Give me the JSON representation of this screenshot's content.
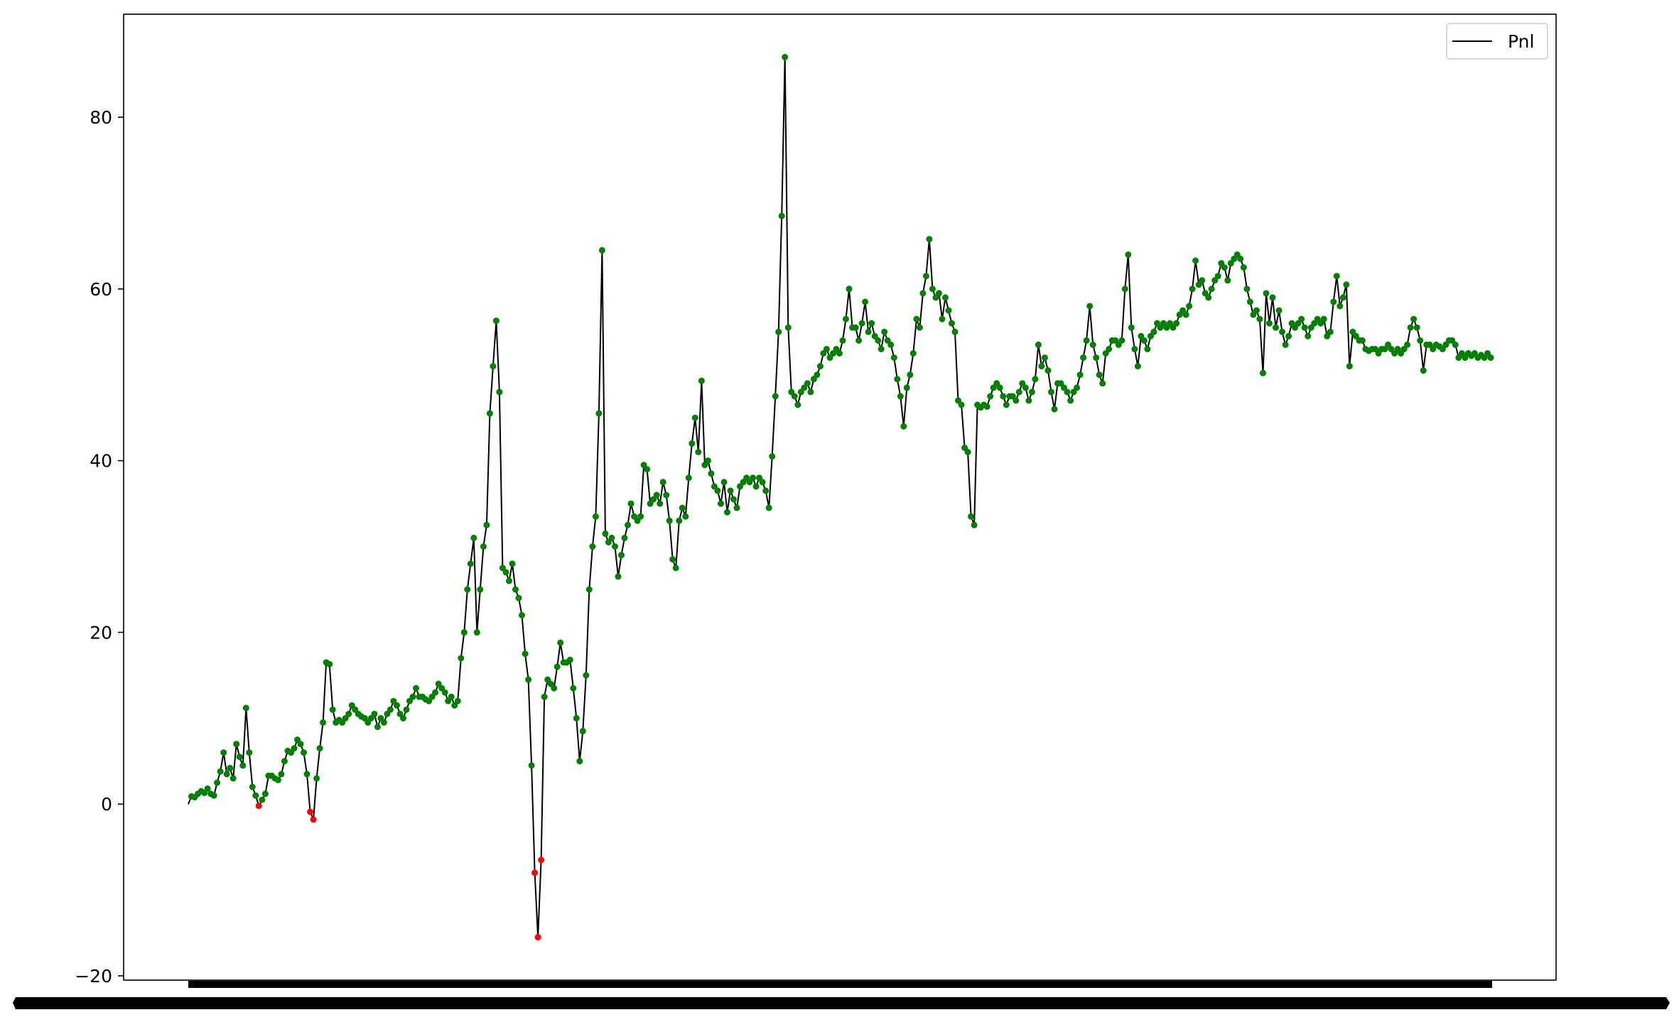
{
  "chart_data": {
    "type": "line",
    "title": "",
    "xlabel": "",
    "ylabel": "",
    "ylim": [
      -20.5,
      92
    ],
    "grid": false,
    "legend": {
      "placement": "top-right",
      "entries": [
        "Pnl"
      ]
    },
    "y_ticks": [
      "−20",
      "0",
      "20",
      "40",
      "60",
      "80"
    ],
    "y_tick_values": [
      -20,
      0,
      20,
      40,
      60,
      80
    ],
    "colors": {
      "line": "#000000",
      "positive_marker": "#008000",
      "negative_marker": "#ff0000"
    },
    "series": [
      {
        "name": "Pnl",
        "values": [
          0,
          0.9,
          0.8,
          1.2,
          1.5,
          1.3,
          1.8,
          1.2,
          1.0,
          2.5,
          3.8,
          6.0,
          3.5,
          4.2,
          3.0,
          7.0,
          5.5,
          4.5,
          11.2,
          6.0,
          2.0,
          1.0,
          -0.2,
          0.5,
          1.2,
          3.3,
          3.3,
          3.0,
          2.8,
          3.5,
          5.0,
          6.2,
          6.0,
          6.5,
          7.5,
          7.0,
          6.0,
          3.5,
          -0.9,
          -1.8,
          3.0,
          6.5,
          9.5,
          16.5,
          16.3,
          11.0,
          9.5,
          9.8,
          9.5,
          10.0,
          10.5,
          11.5,
          11.0,
          10.5,
          10.2,
          10.0,
          9.5,
          10.0,
          10.5,
          9.0,
          10.0,
          9.5,
          10.5,
          11.0,
          12.0,
          11.5,
          10.5,
          10.0,
          11.0,
          12.0,
          12.5,
          13.5,
          12.5,
          12.5,
          12.2,
          12.0,
          12.5,
          13.0,
          14.0,
          13.5,
          13.0,
          12.0,
          12.5,
          11.5,
          12.0,
          17.0,
          20.0,
          25.0,
          28.0,
          31.0,
          20.0,
          25.0,
          30.0,
          32.5,
          45.5,
          51.0,
          56.3,
          48.0,
          27.5,
          27.0,
          26.0,
          28.0,
          25.0,
          24.0,
          22.0,
          17.5,
          14.5,
          4.5,
          -8.0,
          -15.5,
          -6.5,
          12.5,
          14.5,
          14.0,
          13.5,
          16.0,
          18.8,
          16.5,
          16.5,
          16.8,
          13.5,
          10.0,
          5.0,
          8.5,
          15.0,
          25.0,
          30.0,
          33.5,
          45.5,
          64.5,
          31.5,
          30.5,
          31.0,
          30.0,
          26.5,
          29.0,
          31.0,
          32.5,
          35.0,
          33.5,
          33.0,
          33.5,
          39.5,
          39.0,
          35.0,
          35.5,
          36.0,
          35.0,
          37.5,
          36.0,
          33.0,
          28.5,
          27.5,
          33.0,
          34.5,
          33.5,
          38.0,
          42.0,
          45.0,
          41.0,
          49.3,
          39.5,
          40.0,
          38.5,
          37.0,
          36.5,
          35.0,
          37.5,
          34.0,
          36.5,
          35.5,
          34.5,
          37.0,
          37.5,
          38.0,
          37.5,
          38.0,
          37.0,
          38.0,
          37.5,
          36.5,
          34.5,
          40.5,
          47.5,
          55.0,
          68.5,
          87.0,
          55.5,
          48.0,
          47.5,
          46.5,
          48.0,
          48.5,
          49.0,
          48.0,
          49.5,
          50.0,
          51.0,
          52.5,
          53.0,
          52.0,
          52.5,
          53.0,
          52.5,
          54.0,
          56.5,
          60.0,
          55.5,
          55.5,
          54.0,
          56.0,
          58.5,
          55.0,
          56.0,
          54.5,
          54.0,
          53.0,
          55.0,
          54.0,
          53.5,
          52.0,
          49.5,
          47.5,
          44.0,
          48.5,
          50.0,
          52.5,
          56.5,
          55.5,
          59.5,
          61.5,
          65.8,
          60.0,
          59.0,
          59.5,
          56.5,
          59.0,
          57.5,
          56.0,
          55.0,
          47.0,
          46.5,
          41.5,
          41.0,
          33.5,
          32.5,
          46.5,
          46.2,
          46.5,
          46.3,
          47.5,
          48.5,
          49.0,
          48.5,
          47.5,
          46.5,
          47.5,
          47.5,
          47.0,
          48.0,
          49.0,
          48.5,
          47.0,
          48.0,
          49.5,
          53.5,
          51.0,
          52.0,
          50.5,
          48.0,
          46.0,
          49.0,
          49.0,
          48.5,
          48.0,
          47.0,
          48.0,
          48.5,
          50.0,
          52.0,
          54.0,
          58.0,
          53.5,
          52.0,
          50.0,
          49.0,
          52.5,
          53.0,
          54.0,
          54.0,
          53.5,
          54.0,
          60.0,
          64.0,
          55.5,
          53.0,
          51.0,
          54.5,
          54.0,
          53.0,
          54.5,
          55.0,
          56.0,
          55.5,
          56.0,
          55.5,
          56.0,
          55.5,
          56.0,
          57.0,
          57.5,
          57.0,
          58.0,
          60.0,
          63.3,
          60.5,
          61.0,
          59.5,
          59.0,
          60.0,
          61.0,
          61.5,
          63.0,
          62.5,
          61.0,
          63.0,
          63.5,
          64.0,
          63.5,
          62.5,
          60.0,
          58.5,
          57.0,
          57.5,
          56.5,
          50.2,
          59.5,
          56.0,
          59.0,
          55.5,
          57.5,
          55.0,
          53.5,
          54.5,
          56.0,
          55.5,
          56.0,
          56.5,
          55.5,
          54.5,
          55.5,
          56.0,
          56.5,
          56.0,
          56.5,
          54.5,
          55.0,
          58.5,
          61.5,
          58.0,
          59.0,
          60.5,
          51.0,
          55.0,
          54.5,
          54.0,
          54.0,
          53.0,
          52.8,
          53.0,
          53.0,
          52.5,
          53.0,
          53.0,
          53.5,
          53.0,
          52.5,
          53.0,
          52.5,
          53.0,
          53.5,
          55.5,
          56.5,
          55.5,
          54.0,
          50.5,
          53.5,
          53.5,
          53.0,
          53.5,
          53.3,
          53.0,
          53.5,
          54.0,
          54.0,
          53.5,
          52.0,
          52.5,
          52.0,
          52.5,
          52.2,
          52.5,
          52.0,
          52.3,
          52.0,
          52.5,
          52.0
        ]
      }
    ]
  }
}
